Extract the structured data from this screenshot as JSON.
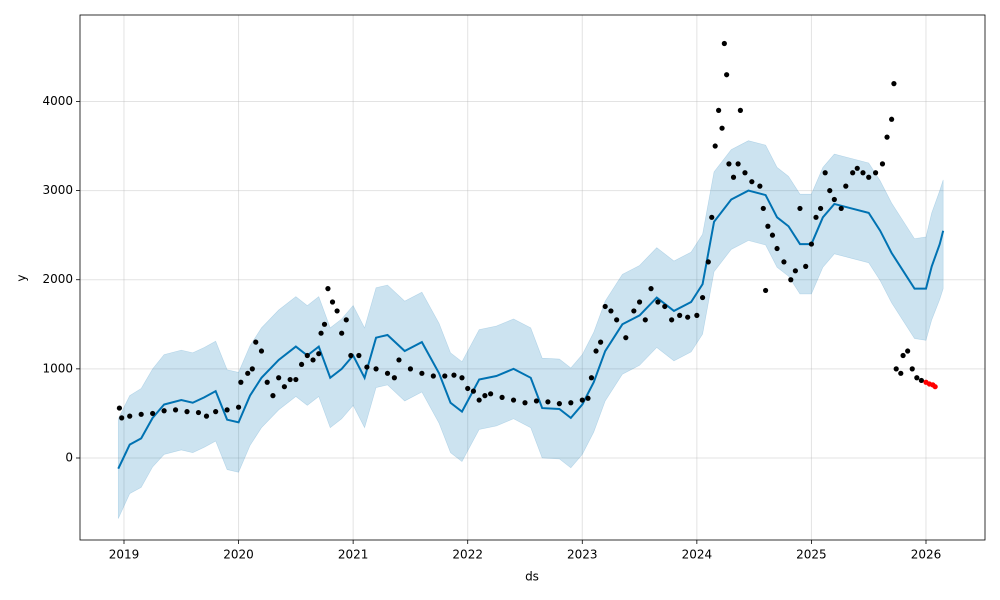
{
  "chart_data": {
    "type": "line",
    "xlabel": "ds",
    "ylabel": "y",
    "xlim": [
      2018.616,
      2026.515
    ],
    "xticks": [
      2019,
      2020,
      2021,
      2022,
      2023,
      2024,
      2025,
      2026
    ],
    "ylim": [
      -920,
      4970
    ],
    "yticks": [
      0,
      1000,
      2000,
      3000,
      4000
    ],
    "grid": true,
    "series": [
      {
        "type": "line",
        "color": "#0072b2",
        "band_color": "#0072b2",
        "x": [
          2018.95,
          2019.05,
          2019.15,
          2019.25,
          2019.35,
          2019.5,
          2019.6,
          2019.7,
          2019.8,
          2019.9,
          2020.0,
          2020.1,
          2020.2,
          2020.35,
          2020.5,
          2020.6,
          2020.7,
          2020.8,
          2020.9,
          2021.0,
          2021.1,
          2021.2,
          2021.3,
          2021.45,
          2021.6,
          2021.75,
          2021.85,
          2021.95,
          2022.1,
          2022.25,
          2022.4,
          2022.55,
          2022.65,
          2022.8,
          2022.9,
          2023.0,
          2023.1,
          2023.2,
          2023.35,
          2023.5,
          2023.65,
          2023.8,
          2023.95,
          2024.05,
          2024.15,
          2024.3,
          2024.45,
          2024.6,
          2024.7,
          2024.8,
          2024.9,
          2025.0,
          2025.1,
          2025.2,
          2025.35,
          2025.5,
          2025.6,
          2025.7,
          2025.8,
          2025.9,
          2026.0,
          2026.05,
          2026.12,
          2026.15
        ],
        "values": [
          -120,
          150,
          220,
          450,
          600,
          650,
          620,
          680,
          750,
          430,
          400,
          700,
          900,
          1100,
          1250,
          1150,
          1250,
          900,
          1000,
          1150,
          900,
          1350,
          1380,
          1200,
          1300,
          950,
          620,
          520,
          880,
          920,
          1000,
          900,
          560,
          550,
          450,
          600,
          850,
          1200,
          1500,
          1600,
          1800,
          1650,
          1750,
          1950,
          2650,
          2900,
          3000,
          2950,
          2700,
          2600,
          2400,
          2400,
          2700,
          2850,
          2800,
          2750,
          2550,
          2300,
          2100,
          1900,
          1900,
          2150,
          2400,
          2550
        ],
        "lower": [
          -680,
          -400,
          -330,
          -100,
          40,
          90,
          60,
          120,
          190,
          -130,
          -160,
          140,
          340,
          540,
          690,
          590,
          690,
          340,
          440,
          590,
          340,
          790,
          820,
          640,
          740,
          390,
          60,
          -40,
          320,
          360,
          440,
          340,
          0,
          -10,
          -110,
          40,
          290,
          640,
          940,
          1040,
          1240,
          1090,
          1190,
          1390,
          2090,
          2340,
          2440,
          2390,
          2140,
          2040,
          1840,
          1840,
          2140,
          2290,
          2240,
          2190,
          1990,
          1740,
          1540,
          1340,
          1320,
          1550,
          1780,
          1900
        ],
        "upper": [
          440,
          700,
          780,
          1000,
          1160,
          1210,
          1180,
          1240,
          1310,
          990,
          960,
          1260,
          1460,
          1660,
          1810,
          1710,
          1810,
          1460,
          1560,
          1710,
          1460,
          1910,
          1940,
          1760,
          1860,
          1510,
          1180,
          1080,
          1440,
          1480,
          1560,
          1460,
          1120,
          1110,
          1010,
          1160,
          1410,
          1760,
          2060,
          2160,
          2360,
          2210,
          2310,
          2510,
          3210,
          3460,
          3560,
          3510,
          3260,
          3160,
          2960,
          2960,
          3260,
          3410,
          3360,
          3310,
          3110,
          2860,
          2660,
          2460,
          2480,
          2750,
          3000,
          3120
        ]
      },
      {
        "type": "scatter",
        "color": "#000000",
        "x": [
          2018.96,
          2018.98,
          2019.05,
          2019.15,
          2019.25,
          2019.35,
          2019.45,
          2019.55,
          2019.65,
          2019.72,
          2019.8,
          2019.9,
          2020.0,
          2020.02,
          2020.08,
          2020.12,
          2020.15,
          2020.2,
          2020.25,
          2020.3,
          2020.35,
          2020.4,
          2020.45,
          2020.5,
          2020.55,
          2020.6,
          2020.65,
          2020.7,
          2020.72,
          2020.75,
          2020.78,
          2020.82,
          2020.86,
          2020.9,
          2020.94,
          2020.98,
          2021.05,
          2021.12,
          2021.2,
          2021.3,
          2021.36,
          2021.4,
          2021.5,
          2021.6,
          2021.7,
          2021.8,
          2021.88,
          2021.95,
          2022.0,
          2022.05,
          2022.1,
          2022.15,
          2022.2,
          2022.3,
          2022.4,
          2022.5,
          2022.6,
          2022.7,
          2022.8,
          2022.9,
          2023.0,
          2023.05,
          2023.08,
          2023.12,
          2023.16,
          2023.2,
          2023.25,
          2023.3,
          2023.38,
          2023.45,
          2023.5,
          2023.55,
          2023.6,
          2023.66,
          2023.72,
          2023.78,
          2023.85,
          2023.92,
          2024.0,
          2024.05,
          2024.1,
          2024.13,
          2024.16,
          2024.19,
          2024.22,
          2024.24,
          2024.26,
          2024.28,
          2024.32,
          2024.36,
          2024.38,
          2024.42,
          2024.48,
          2024.55,
          2024.58,
          2024.6,
          2024.62,
          2024.66,
          2024.7,
          2024.76,
          2024.82,
          2024.86,
          2024.9,
          2024.95,
          2025.0,
          2025.04,
          2025.08,
          2025.12,
          2025.16,
          2025.2,
          2025.26,
          2025.3,
          2025.36,
          2025.4,
          2025.45,
          2025.5,
          2025.56,
          2025.62,
          2025.66,
          2025.7,
          2025.72,
          2025.74,
          2025.78,
          2025.8,
          2025.84,
          2025.88,
          2025.92,
          2025.96
        ],
        "values": [
          560,
          450,
          470,
          490,
          500,
          530,
          540,
          520,
          510,
          470,
          520,
          540,
          570,
          850,
          950,
          1000,
          1300,
          1200,
          850,
          700,
          900,
          800,
          880,
          880,
          1050,
          1150,
          1100,
          1170,
          1400,
          1500,
          1900,
          1750,
          1650,
          1400,
          1550,
          1150,
          1150,
          1020,
          1000,
          950,
          900,
          1100,
          1000,
          950,
          920,
          920,
          930,
          900,
          780,
          750,
          650,
          700,
          720,
          680,
          650,
          620,
          640,
          630,
          610,
          620,
          650,
          670,
          900,
          1200,
          1300,
          1700,
          1650,
          1550,
          1350,
          1650,
          1750,
          1550,
          1900,
          1750,
          1700,
          1550,
          1600,
          1580,
          1600,
          1800,
          2200,
          2700,
          3500,
          3900,
          3700,
          4650,
          4300,
          3300,
          3150,
          3300,
          3900,
          3200,
          3100,
          3050,
          2800,
          1880,
          2600,
          2500,
          2350,
          2200,
          2000,
          2100,
          2800,
          2150,
          2400,
          2700,
          2800,
          3200,
          3000,
          2900,
          2800,
          3050,
          3200,
          3250,
          3200,
          3150,
          3200,
          3300,
          3600,
          3800,
          4200,
          1000,
          950,
          1150,
          1200,
          1000,
          900,
          870
        ]
      },
      {
        "type": "scatter",
        "color": "#ff0000",
        "x": [
          2026.0,
          2026.03,
          2026.06,
          2026.08
        ],
        "values": [
          850,
          830,
          820,
          800
        ]
      }
    ]
  }
}
